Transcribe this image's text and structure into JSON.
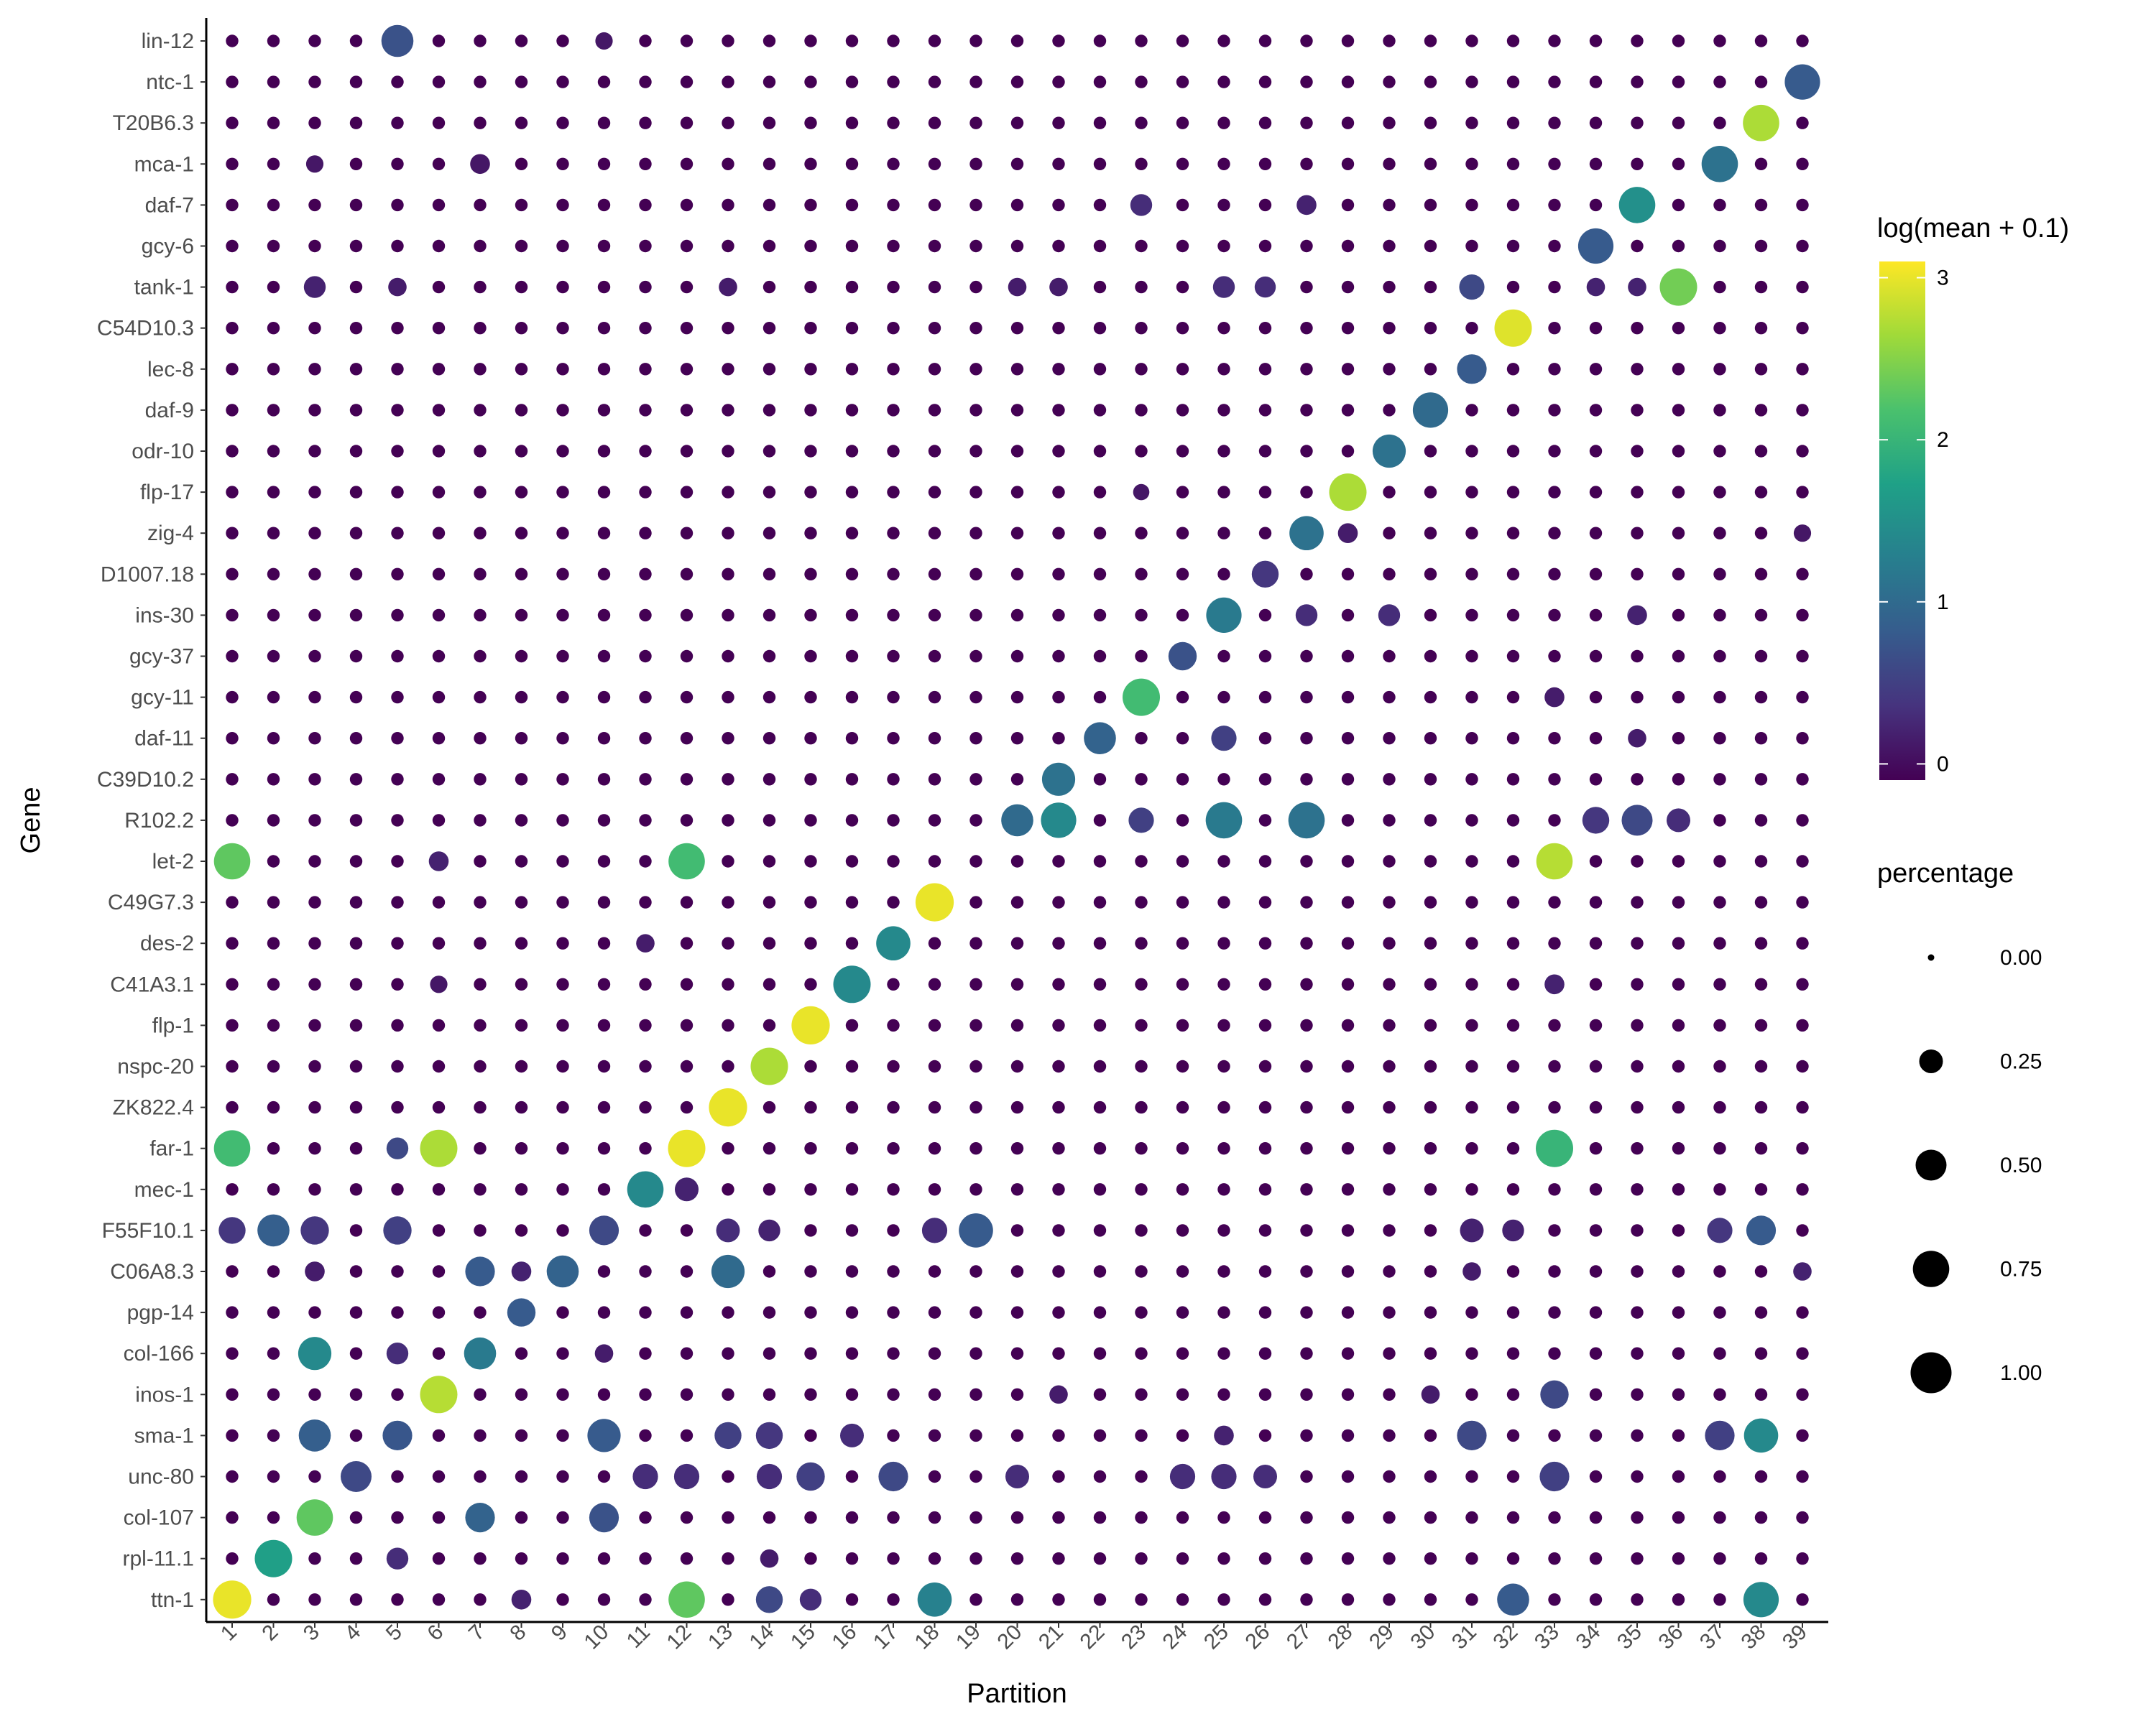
{
  "chart_data": {
    "type": "dotplot",
    "xlabel": "Partition",
    "ylabel": "Gene",
    "genes": [
      "lin-12",
      "ntc-1",
      "T20B6.3",
      "mca-1",
      "daf-7",
      "gcy-6",
      "tank-1",
      "C54D10.3",
      "lec-8",
      "daf-9",
      "odr-10",
      "flp-17",
      "zig-4",
      "D1007.18",
      "ins-30",
      "gcy-37",
      "gcy-11",
      "daf-11",
      "C39D10.2",
      "R102.2",
      "let-2",
      "C49G7.3",
      "des-2",
      "C41A3.1",
      "flp-1",
      "nspc-20",
      "ZK822.4",
      "far-1",
      "mec-1",
      "F55F10.1",
      "C06A8.3",
      "pgp-14",
      "col-166",
      "inos-1",
      "sma-1",
      "unc-80",
      "col-107",
      "rpl-11.1",
      "ttn-1"
    ],
    "partitions": [
      "1",
      "2",
      "3",
      "4",
      "5",
      "6",
      "7",
      "8",
      "9",
      "10",
      "11",
      "12",
      "13",
      "14",
      "15",
      "16",
      "17",
      "18",
      "19",
      "20",
      "21",
      "22",
      "23",
      "24",
      "25",
      "26",
      "27",
      "28",
      "29",
      "30",
      "31",
      "32",
      "33",
      "34",
      "35",
      "36",
      "37",
      "38",
      "39"
    ],
    "color_legend": {
      "title": "log(mean + 0.1)",
      "ticks": [
        0,
        1,
        2,
        3
      ],
      "range": [
        -0.1,
        3.1
      ],
      "colors": [
        "#440154",
        "#46337e",
        "#365c8d",
        "#277f8e",
        "#1fa187",
        "#4ac16d",
        "#a0da39",
        "#fde725"
      ]
    },
    "size_legend": {
      "title": "percentage",
      "values": [
        0.0,
        0.25,
        0.5,
        0.75,
        1.0
      ],
      "labels": [
        "0.00",
        "0.25",
        "0.50",
        "0.75",
        "1.00"
      ]
    },
    "default_point": {
      "pct": 0.03,
      "color": -0.1
    },
    "points": [
      {
        "gene": "lin-12",
        "partition": "5",
        "pct": 0.55,
        "color": 0.7
      },
      {
        "gene": "lin-12",
        "partition": "10",
        "pct": 0.1,
        "color": 0.1
      },
      {
        "gene": "ntc-1",
        "partition": "39",
        "pct": 0.7,
        "color": 0.8
      },
      {
        "gene": "T20B6.3",
        "partition": "38",
        "pct": 0.75,
        "color": 2.7
      },
      {
        "gene": "mca-1",
        "partition": "3",
        "pct": 0.1,
        "color": 0.1
      },
      {
        "gene": "mca-1",
        "partition": "7",
        "pct": 0.15,
        "color": 0.1
      },
      {
        "gene": "mca-1",
        "partition": "37",
        "pct": 0.75,
        "color": 1.1
      },
      {
        "gene": "daf-7",
        "partition": "23",
        "pct": 0.2,
        "color": 0.3
      },
      {
        "gene": "daf-7",
        "partition": "27",
        "pct": 0.15,
        "color": 0.2
      },
      {
        "gene": "daf-7",
        "partition": "35",
        "pct": 0.75,
        "color": 1.5
      },
      {
        "gene": "gcy-6",
        "partition": "34",
        "pct": 0.7,
        "color": 0.8
      },
      {
        "gene": "tank-1",
        "partition": "3",
        "pct": 0.2,
        "color": 0.2
      },
      {
        "gene": "tank-1",
        "partition": "5",
        "pct": 0.12,
        "color": 0.15
      },
      {
        "gene": "tank-1",
        "partition": "13",
        "pct": 0.12,
        "color": 0.15
      },
      {
        "gene": "tank-1",
        "partition": "20",
        "pct": 0.12,
        "color": 0.15
      },
      {
        "gene": "tank-1",
        "partition": "21",
        "pct": 0.12,
        "color": 0.15
      },
      {
        "gene": "tank-1",
        "partition": "25",
        "pct": 0.2,
        "color": 0.3
      },
      {
        "gene": "tank-1",
        "partition": "26",
        "pct": 0.18,
        "color": 0.3
      },
      {
        "gene": "tank-1",
        "partition": "31",
        "pct": 0.3,
        "color": 0.6
      },
      {
        "gene": "tank-1",
        "partition": "34",
        "pct": 0.12,
        "color": 0.2
      },
      {
        "gene": "tank-1",
        "partition": "35",
        "pct": 0.12,
        "color": 0.2
      },
      {
        "gene": "tank-1",
        "partition": "36",
        "pct": 0.8,
        "color": 2.4
      },
      {
        "gene": "C54D10.3",
        "partition": "32",
        "pct": 0.8,
        "color": 2.95
      },
      {
        "gene": "lec-8",
        "partition": "31",
        "pct": 0.45,
        "color": 0.8
      },
      {
        "gene": "daf-9",
        "partition": "30",
        "pct": 0.7,
        "color": 1.0
      },
      {
        "gene": "odr-10",
        "partition": "29",
        "pct": 0.6,
        "color": 1.1
      },
      {
        "gene": "flp-17",
        "partition": "28",
        "pct": 0.8,
        "color": 2.7
      },
      {
        "gene": "flp-17",
        "partition": "23",
        "pct": 0.08,
        "color": 0.1
      },
      {
        "gene": "zig-4",
        "partition": "27",
        "pct": 0.65,
        "color": 1.1
      },
      {
        "gene": "zig-4",
        "partition": "28",
        "pct": 0.15,
        "color": 0.15
      },
      {
        "gene": "zig-4",
        "partition": "39",
        "pct": 0.1,
        "color": 0.1
      },
      {
        "gene": "D1007.18",
        "partition": "26",
        "pct": 0.35,
        "color": 0.4
      },
      {
        "gene": "ins-30",
        "partition": "25",
        "pct": 0.7,
        "color": 1.2
      },
      {
        "gene": "ins-30",
        "partition": "27",
        "pct": 0.2,
        "color": 0.3
      },
      {
        "gene": "ins-30",
        "partition": "29",
        "pct": 0.2,
        "color": 0.3
      },
      {
        "gene": "ins-30",
        "partition": "35",
        "pct": 0.15,
        "color": 0.2
      },
      {
        "gene": "gcy-37",
        "partition": "24",
        "pct": 0.4,
        "color": 0.7
      },
      {
        "gene": "gcy-11",
        "partition": "23",
        "pct": 0.8,
        "color": 2.1
      },
      {
        "gene": "gcy-11",
        "partition": "33",
        "pct": 0.15,
        "color": 0.15
      },
      {
        "gene": "daf-11",
        "partition": "22",
        "pct": 0.55,
        "color": 0.9
      },
      {
        "gene": "daf-11",
        "partition": "25",
        "pct": 0.3,
        "color": 0.5
      },
      {
        "gene": "daf-11",
        "partition": "35",
        "pct": 0.12,
        "color": 0.15
      },
      {
        "gene": "C39D10.2",
        "partition": "21",
        "pct": 0.6,
        "color": 1.1
      },
      {
        "gene": "R102.2",
        "partition": "20",
        "pct": 0.55,
        "color": 1.0
      },
      {
        "gene": "R102.2",
        "partition": "21",
        "pct": 0.7,
        "color": 1.4
      },
      {
        "gene": "R102.2",
        "partition": "23",
        "pct": 0.3,
        "color": 0.5
      },
      {
        "gene": "R102.2",
        "partition": "25",
        "pct": 0.75,
        "color": 1.2
      },
      {
        "gene": "R102.2",
        "partition": "27",
        "pct": 0.75,
        "color": 1.1
      },
      {
        "gene": "R102.2",
        "partition": "34",
        "pct": 0.35,
        "color": 0.4
      },
      {
        "gene": "R102.2",
        "partition": "35",
        "pct": 0.5,
        "color": 0.6
      },
      {
        "gene": "R102.2",
        "partition": "36",
        "pct": 0.25,
        "color": 0.3
      },
      {
        "gene": "let-2",
        "partition": "1",
        "pct": 0.75,
        "color": 2.3
      },
      {
        "gene": "let-2",
        "partition": "6",
        "pct": 0.15,
        "color": 0.2
      },
      {
        "gene": "let-2",
        "partition": "12",
        "pct": 0.75,
        "color": 2.1
      },
      {
        "gene": "let-2",
        "partition": "33",
        "pct": 0.75,
        "color": 2.75
      },
      {
        "gene": "C49G7.3",
        "partition": "18",
        "pct": 0.85,
        "color": 3.0
      },
      {
        "gene": "des-2",
        "partition": "11",
        "pct": 0.12,
        "color": 0.15
      },
      {
        "gene": "des-2",
        "partition": "17",
        "pct": 0.65,
        "color": 1.4
      },
      {
        "gene": "C41A3.1",
        "partition": "16",
        "pct": 0.8,
        "color": 1.4
      },
      {
        "gene": "C41A3.1",
        "partition": "6",
        "pct": 0.1,
        "color": 0.1
      },
      {
        "gene": "C41A3.1",
        "partition": "33",
        "pct": 0.15,
        "color": 0.2
      },
      {
        "gene": "flp-1",
        "partition": "15",
        "pct": 0.85,
        "color": 3.0
      },
      {
        "gene": "nspc-20",
        "partition": "14",
        "pct": 0.8,
        "color": 2.7
      },
      {
        "gene": "ZK822.4",
        "partition": "13",
        "pct": 0.85,
        "color": 3.0
      },
      {
        "gene": "far-1",
        "partition": "1",
        "pct": 0.75,
        "color": 2.1
      },
      {
        "gene": "far-1",
        "partition": "5",
        "pct": 0.2,
        "color": 0.6
      },
      {
        "gene": "far-1",
        "partition": "6",
        "pct": 0.8,
        "color": 2.7
      },
      {
        "gene": "far-1",
        "partition": "12",
        "pct": 0.8,
        "color": 3.0
      },
      {
        "gene": "far-1",
        "partition": "33",
        "pct": 0.8,
        "color": 2.0
      },
      {
        "gene": "mec-1",
        "partition": "11",
        "pct": 0.75,
        "color": 1.4
      },
      {
        "gene": "mec-1",
        "partition": "12",
        "pct": 0.25,
        "color": 0.2
      },
      {
        "gene": "F55F10.1",
        "partition": "1",
        "pct": 0.35,
        "color": 0.4
      },
      {
        "gene": "F55F10.1",
        "partition": "2",
        "pct": 0.55,
        "color": 0.85
      },
      {
        "gene": "F55F10.1",
        "partition": "3",
        "pct": 0.4,
        "color": 0.4
      },
      {
        "gene": "F55F10.1",
        "partition": "5",
        "pct": 0.4,
        "color": 0.5
      },
      {
        "gene": "F55F10.1",
        "partition": "10",
        "pct": 0.45,
        "color": 0.6
      },
      {
        "gene": "F55F10.1",
        "partition": "13",
        "pct": 0.25,
        "color": 0.3
      },
      {
        "gene": "F55F10.1",
        "partition": "14",
        "pct": 0.2,
        "color": 0.2
      },
      {
        "gene": "F55F10.1",
        "partition": "18",
        "pct": 0.3,
        "color": 0.3
      },
      {
        "gene": "F55F10.1",
        "partition": "19",
        "pct": 0.65,
        "color": 0.8
      },
      {
        "gene": "F55F10.1",
        "partition": "31",
        "pct": 0.25,
        "color": 0.2
      },
      {
        "gene": "F55F10.1",
        "partition": "32",
        "pct": 0.2,
        "color": 0.2
      },
      {
        "gene": "F55F10.1",
        "partition": "37",
        "pct": 0.3,
        "color": 0.4
      },
      {
        "gene": "F55F10.1",
        "partition": "38",
        "pct": 0.45,
        "color": 0.8
      },
      {
        "gene": "C06A8.3",
        "partition": "3",
        "pct": 0.15,
        "color": 0.15
      },
      {
        "gene": "C06A8.3",
        "partition": "7",
        "pct": 0.45,
        "color": 0.8
      },
      {
        "gene": "C06A8.3",
        "partition": "8",
        "pct": 0.15,
        "color": 0.2
      },
      {
        "gene": "C06A8.3",
        "partition": "9",
        "pct": 0.55,
        "color": 0.9
      },
      {
        "gene": "C06A8.3",
        "partition": "13",
        "pct": 0.6,
        "color": 1.0
      },
      {
        "gene": "C06A8.3",
        "partition": "31",
        "pct": 0.12,
        "color": 0.15
      },
      {
        "gene": "C06A8.3",
        "partition": "39",
        "pct": 0.12,
        "color": 0.2
      },
      {
        "gene": "pgp-14",
        "partition": "8",
        "pct": 0.4,
        "color": 0.8
      },
      {
        "gene": "col-166",
        "partition": "3",
        "pct": 0.6,
        "color": 1.4
      },
      {
        "gene": "col-166",
        "partition": "5",
        "pct": 0.2,
        "color": 0.3
      },
      {
        "gene": "col-166",
        "partition": "7",
        "pct": 0.55,
        "color": 1.2
      },
      {
        "gene": "col-166",
        "partition": "10",
        "pct": 0.12,
        "color": 0.15
      },
      {
        "gene": "inos-1",
        "partition": "6",
        "pct": 0.8,
        "color": 2.75
      },
      {
        "gene": "inos-1",
        "partition": "33",
        "pct": 0.4,
        "color": 0.6
      },
      {
        "gene": "inos-1",
        "partition": "21",
        "pct": 0.12,
        "color": 0.15
      },
      {
        "gene": "inos-1",
        "partition": "30",
        "pct": 0.12,
        "color": 0.15
      },
      {
        "gene": "sma-1",
        "partition": "3",
        "pct": 0.55,
        "color": 0.85
      },
      {
        "gene": "sma-1",
        "partition": "5",
        "pct": 0.45,
        "color": 0.75
      },
      {
        "gene": "sma-1",
        "partition": "10",
        "pct": 0.6,
        "color": 0.8
      },
      {
        "gene": "sma-1",
        "partition": "13",
        "pct": 0.35,
        "color": 0.5
      },
      {
        "gene": "sma-1",
        "partition": "14",
        "pct": 0.35,
        "color": 0.4
      },
      {
        "gene": "sma-1",
        "partition": "16",
        "pct": 0.25,
        "color": 0.3
      },
      {
        "gene": "sma-1",
        "partition": "25",
        "pct": 0.15,
        "color": 0.2
      },
      {
        "gene": "sma-1",
        "partition": "31",
        "pct": 0.45,
        "color": 0.6
      },
      {
        "gene": "sma-1",
        "partition": "37",
        "pct": 0.45,
        "color": 0.5
      },
      {
        "gene": "sma-1",
        "partition": "38",
        "pct": 0.65,
        "color": 1.4
      },
      {
        "gene": "unc-80",
        "partition": "4",
        "pct": 0.5,
        "color": 0.6
      },
      {
        "gene": "unc-80",
        "partition": "11",
        "pct": 0.3,
        "color": 0.3
      },
      {
        "gene": "unc-80",
        "partition": "12",
        "pct": 0.3,
        "color": 0.3
      },
      {
        "gene": "unc-80",
        "partition": "14",
        "pct": 0.3,
        "color": 0.3
      },
      {
        "gene": "unc-80",
        "partition": "15",
        "pct": 0.4,
        "color": 0.5
      },
      {
        "gene": "unc-80",
        "partition": "17",
        "pct": 0.45,
        "color": 0.6
      },
      {
        "gene": "unc-80",
        "partition": "20",
        "pct": 0.25,
        "color": 0.3
      },
      {
        "gene": "unc-80",
        "partition": "24",
        "pct": 0.3,
        "color": 0.3
      },
      {
        "gene": "unc-80",
        "partition": "25",
        "pct": 0.3,
        "color": 0.3
      },
      {
        "gene": "unc-80",
        "partition": "26",
        "pct": 0.25,
        "color": 0.3
      },
      {
        "gene": "unc-80",
        "partition": "33",
        "pct": 0.45,
        "color": 0.5
      },
      {
        "gene": "col-107",
        "partition": "3",
        "pct": 0.75,
        "color": 2.3
      },
      {
        "gene": "col-107",
        "partition": "7",
        "pct": 0.45,
        "color": 0.9
      },
      {
        "gene": "col-107",
        "partition": "10",
        "pct": 0.45,
        "color": 0.7
      },
      {
        "gene": "rpl-11.1",
        "partition": "2",
        "pct": 0.8,
        "color": 1.7
      },
      {
        "gene": "rpl-11.1",
        "partition": "5",
        "pct": 0.2,
        "color": 0.3
      },
      {
        "gene": "rpl-11.1",
        "partition": "14",
        "pct": 0.12,
        "color": 0.15
      },
      {
        "gene": "ttn-1",
        "partition": "1",
        "pct": 0.85,
        "color": 3.0
      },
      {
        "gene": "ttn-1",
        "partition": "12",
        "pct": 0.75,
        "color": 2.3
      },
      {
        "gene": "ttn-1",
        "partition": "14",
        "pct": 0.35,
        "color": 0.6
      },
      {
        "gene": "ttn-1",
        "partition": "15",
        "pct": 0.2,
        "color": 0.3
      },
      {
        "gene": "ttn-1",
        "partition": "18",
        "pct": 0.65,
        "color": 1.3
      },
      {
        "gene": "ttn-1",
        "partition": "32",
        "pct": 0.55,
        "color": 0.8
      },
      {
        "gene": "ttn-1",
        "partition": "38",
        "pct": 0.7,
        "color": 1.4
      },
      {
        "gene": "ttn-1",
        "partition": "8",
        "pct": 0.15,
        "color": 0.2
      }
    ]
  }
}
